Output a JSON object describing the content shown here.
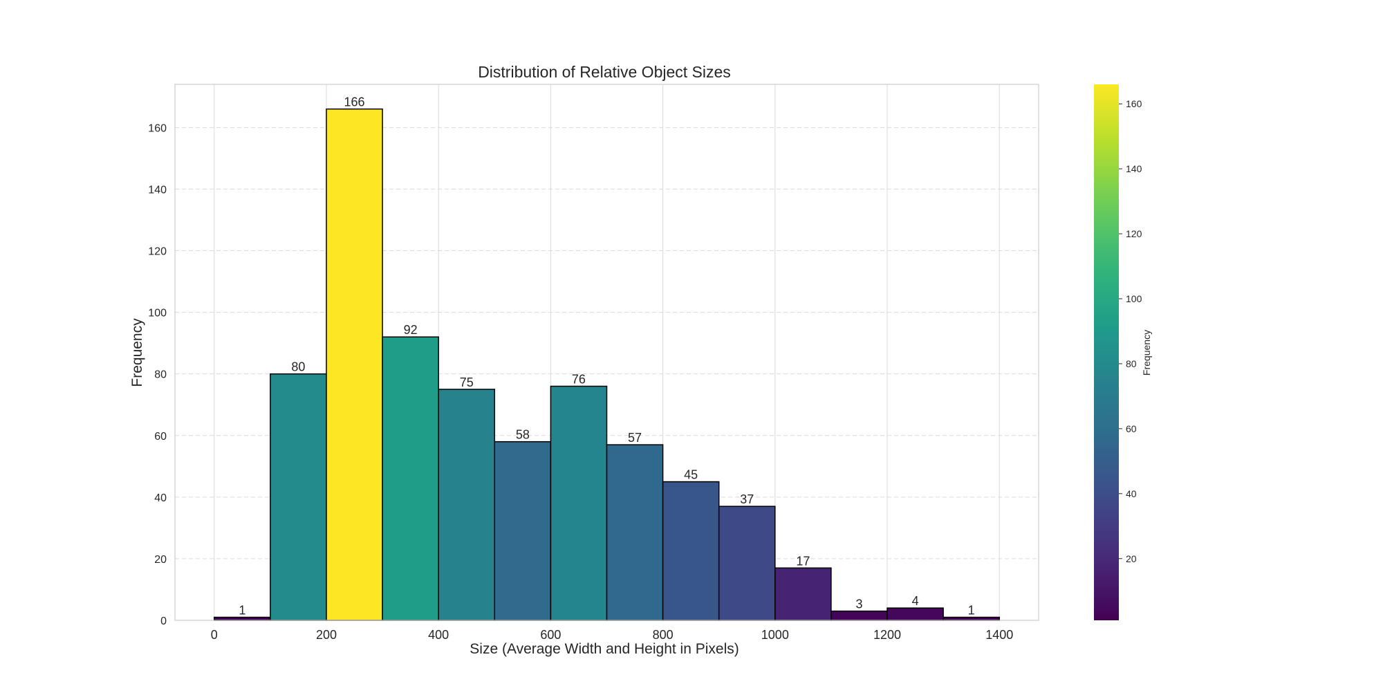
{
  "chart_data": {
    "type": "bar",
    "title": "Distribution of Relative Object Sizes",
    "xlabel": "Size (Average Width and Height in Pixels)",
    "ylabel": "Frequency",
    "bin_edges": [
      0,
      100,
      200,
      300,
      400,
      500,
      600,
      700,
      800,
      900,
      1000,
      1100,
      1200,
      1300,
      1400
    ],
    "values": [
      1,
      80,
      166,
      92,
      75,
      58,
      76,
      57,
      45,
      37,
      17,
      3,
      4,
      1
    ],
    "xlim": [
      -70,
      1470
    ],
    "ylim": [
      0,
      174
    ],
    "x_ticks": [
      0,
      200,
      400,
      600,
      800,
      1000,
      1200,
      1400
    ],
    "x_tick_labels": [
      "0",
      "200",
      "400",
      "600",
      "800",
      "1000",
      "1200",
      "1400"
    ],
    "y_ticks": [
      0,
      20,
      40,
      60,
      80,
      100,
      120,
      140,
      160
    ],
    "y_tick_labels": [
      "0",
      "20",
      "40",
      "60",
      "80",
      "100",
      "120",
      "140",
      "160"
    ],
    "grid": true,
    "colormap": "viridis",
    "colorbar": {
      "label": "Frequency",
      "range": [
        1,
        166
      ],
      "ticks": [
        20,
        40,
        60,
        80,
        100,
        120,
        140,
        160
      ],
      "tick_labels": [
        "20",
        "40",
        "60",
        "80",
        "100",
        "120",
        "140",
        "160"
      ]
    },
    "colors": {
      "bar_edge": "#000000",
      "grid": "#d9d9d9",
      "frame": "#cccccc",
      "text": "#262626"
    }
  }
}
